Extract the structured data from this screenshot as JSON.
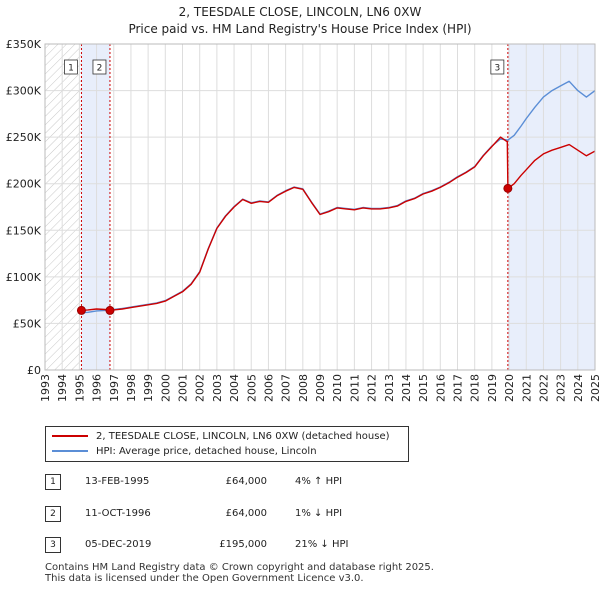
{
  "chart_data": {
    "type": "line",
    "title": "2, TEESDALE CLOSE, LINCOLN, LN6 0XW",
    "subtitle": "Price paid vs. HM Land Registry's House Price Index (HPI)",
    "xlabel": "",
    "ylabel": "",
    "xlim": [
      1993,
      2025
    ],
    "ylim": [
      0,
      350000
    ],
    "x_ticks": [
      "1993",
      "1994",
      "1995",
      "1996",
      "1997",
      "1998",
      "1999",
      "2000",
      "2001",
      "2002",
      "2003",
      "2004",
      "2005",
      "2006",
      "2007",
      "2008",
      "2009",
      "2010",
      "2011",
      "2012",
      "2013",
      "2014",
      "2015",
      "2016",
      "2017",
      "2018",
      "2019",
      "2020",
      "2021",
      "2022",
      "2023",
      "2024",
      "2025"
    ],
    "y_ticks": [
      {
        "value": 0,
        "label": "£0"
      },
      {
        "value": 50000,
        "label": "£50K"
      },
      {
        "value": 100000,
        "label": "£100K"
      },
      {
        "value": 150000,
        "label": "£150K"
      },
      {
        "value": 200000,
        "label": "£200K"
      },
      {
        "value": 250000,
        "label": "£250K"
      },
      {
        "value": 300000,
        "label": "£300K"
      },
      {
        "value": 350000,
        "label": "£350K"
      }
    ],
    "grid": true,
    "series": [
      {
        "name": "2, TEESDALE CLOSE, LINCOLN, LN6 0XW (detached house)",
        "color": "#cc0000",
        "x": [
          1995.12,
          1995.5,
          1996.0,
          1996.5,
          1996.78,
          1997.0,
          1997.5,
          1998.0,
          1998.5,
          1999.0,
          1999.5,
          2000.0,
          2000.5,
          2001.0,
          2001.5,
          2002.0,
          2002.5,
          2003.0,
          2003.5,
          2004.0,
          2004.5,
          2005.0,
          2005.5,
          2006.0,
          2006.5,
          2007.0,
          2007.5,
          2008.0,
          2008.5,
          2009.0,
          2009.5,
          2010.0,
          2010.5,
          2011.0,
          2011.5,
          2012.0,
          2012.5,
          2013.0,
          2013.5,
          2014.0,
          2014.5,
          2015.0,
          2015.5,
          2016.0,
          2016.5,
          2017.0,
          2017.5,
          2018.0,
          2018.5,
          2019.0,
          2019.5,
          2019.9,
          2019.93,
          2020.3,
          2020.7,
          2021.0,
          2021.5,
          2022.0,
          2022.5,
          2023.0,
          2023.5,
          2024.0,
          2024.5,
          2025.0
        ],
        "values": [
          64000,
          64500,
          65500,
          65000,
          64000,
          64500,
          65500,
          67000,
          68500,
          70000,
          71500,
          74000,
          79000,
          84000,
          92000,
          105000,
          130000,
          152000,
          165000,
          175000,
          183000,
          179000,
          181000,
          180000,
          187000,
          192000,
          196000,
          194000,
          180000,
          167000,
          170000,
          174000,
          173000,
          172000,
          174000,
          173000,
          173000,
          174000,
          176000,
          181000,
          184000,
          189000,
          192000,
          196000,
          201000,
          207000,
          212000,
          218000,
          230000,
          240000,
          250000,
          245000,
          195000,
          200000,
          209000,
          215000,
          225000,
          232000,
          236000,
          239000,
          242000,
          236000,
          230000,
          235000
        ]
      },
      {
        "name": "HPI: Average price, detached house, Lincoln",
        "color": "#5b8ed6",
        "x": [
          1995.12,
          1995.5,
          1996.0,
          1996.5,
          1996.78,
          1997.0,
          1997.5,
          1998.0,
          1998.5,
          1999.0,
          1999.5,
          2000.0,
          2000.5,
          2001.0,
          2001.5,
          2002.0,
          2002.5,
          2003.0,
          2003.5,
          2004.0,
          2004.5,
          2005.0,
          2005.5,
          2006.0,
          2006.5,
          2007.0,
          2007.5,
          2008.0,
          2008.5,
          2009.0,
          2009.5,
          2010.0,
          2010.5,
          2011.0,
          2011.5,
          2012.0,
          2012.5,
          2013.0,
          2013.5,
          2014.0,
          2014.5,
          2015.0,
          2015.5,
          2016.0,
          2016.5,
          2017.0,
          2017.5,
          2018.0,
          2018.5,
          2019.0,
          2019.5,
          2019.93,
          2020.3,
          2020.7,
          2021.0,
          2021.5,
          2022.0,
          2022.5,
          2023.0,
          2023.5,
          2024.0,
          2024.5,
          2025.0
        ],
        "values": [
          61500,
          62000,
          63500,
          64000,
          64600,
          65000,
          66000,
          67500,
          69000,
          70500,
          72000,
          74500,
          79500,
          84500,
          92500,
          105500,
          130500,
          152500,
          165500,
          175500,
          183500,
          179500,
          181500,
          180500,
          187500,
          192500,
          196500,
          194500,
          180500,
          167500,
          170500,
          174500,
          173500,
          172500,
          174500,
          173500,
          173500,
          174500,
          176500,
          181500,
          184500,
          189500,
          192500,
          196500,
          201500,
          207500,
          212500,
          218500,
          230500,
          240500,
          248000,
          246800,
          252000,
          262000,
          270000,
          282000,
          293000,
          300000,
          305000,
          310000,
          300000,
          293000,
          300000
        ]
      }
    ],
    "sale_markers": [
      {
        "label": "1",
        "x": 1995.12,
        "value": 64000
      },
      {
        "label": "2",
        "x": 1996.78,
        "value": 64000
      },
      {
        "label": "3",
        "x": 2019.93,
        "value": 195000
      }
    ]
  },
  "legend": {
    "property_label": "2, TEESDALE CLOSE, LINCOLN, LN6 0XW (detached house)",
    "hpi_label": "HPI: Average price, detached house, Lincoln"
  },
  "sales": [
    {
      "num": "1",
      "date": "13-FEB-1995",
      "price": "£64,000",
      "hpi": "4% ↑ HPI"
    },
    {
      "num": "2",
      "date": "11-OCT-1996",
      "price": "£64,000",
      "hpi": "1% ↓ HPI"
    },
    {
      "num": "3",
      "date": "05-DEC-2019",
      "price": "£195,000",
      "hpi": "21% ↓ HPI"
    }
  ],
  "footer": {
    "line1": "Contains HM Land Registry data © Crown copyright and database right 2025.",
    "line2": "This data is licensed under the Open Government Licence v3.0."
  },
  "colors": {
    "property": "#cc0000",
    "hpi": "#5b8ed6",
    "band": "#e8eefb",
    "grid": "#dddddd"
  }
}
